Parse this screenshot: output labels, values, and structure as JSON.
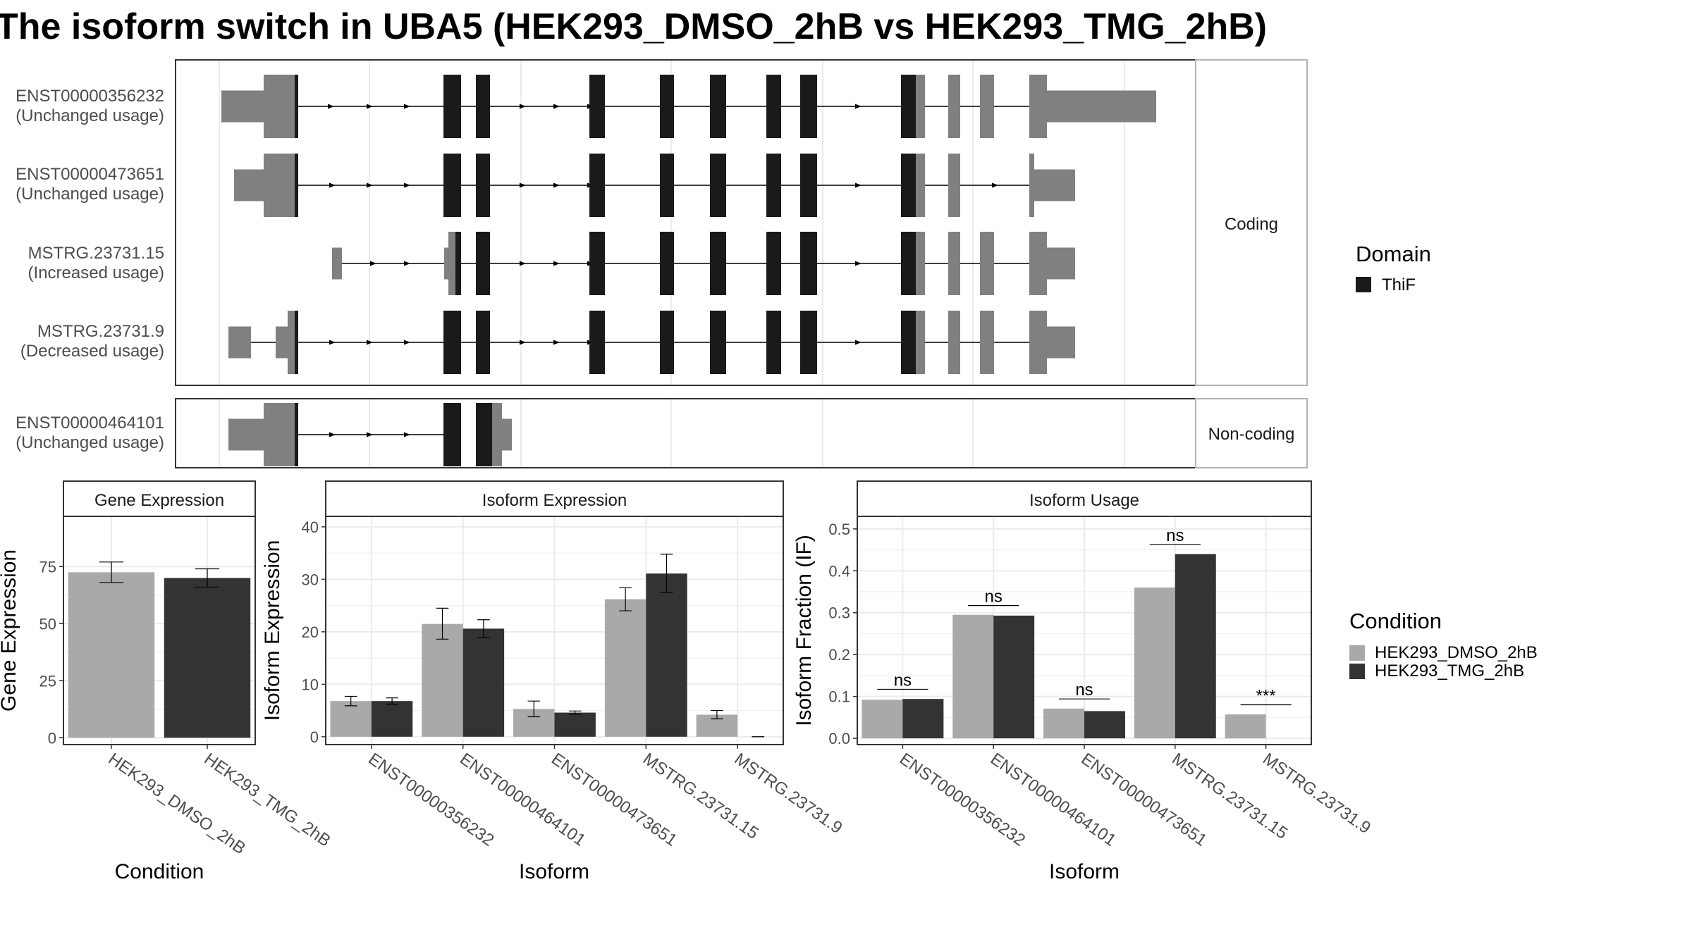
{
  "figure": {
    "title": "The isoform switch in UBA5 (HEK293_DMSO_2hB vs HEK293_TMG_2hB)"
  },
  "colors": {
    "domain_thif": "#1a1a1a",
    "exon_plain": "#808080",
    "cond_dmso": "#a9a9a9",
    "cond_tmg": "#333333",
    "grid": "#ebebeb",
    "panel_border": "#333333",
    "strip_border": "#b3b3b3"
  },
  "structure": {
    "facets": [
      {
        "label": "Coding",
        "transcripts": [
          {
            "id": "ENST00000356232",
            "usage": "(Unchanged usage)"
          },
          {
            "id": "ENST00000473651",
            "usage": "(Unchanged usage)"
          },
          {
            "id": "MSTRG.23731.15",
            "usage": "(Increased usage)"
          },
          {
            "id": "MSTRG.23731.9",
            "usage": "(Decreased usage)"
          }
        ]
      },
      {
        "label": "Non-coding",
        "transcripts": [
          {
            "id": "ENST00000464101",
            "usage": "(Unchanged usage)"
          }
        ]
      }
    ]
  },
  "legends": {
    "domain": {
      "title": "Domain",
      "items": [
        {
          "label": "ThiF",
          "color": "#1a1a1a"
        }
      ]
    },
    "condition": {
      "title": "Condition",
      "items": [
        {
          "label": "HEK293_DMSO_2hB",
          "color": "#a9a9a9"
        },
        {
          "label": "HEK293_TMG_2hB",
          "color": "#333333"
        }
      ]
    }
  },
  "chart_data": [
    {
      "type": "bar",
      "title": "Gene Expression",
      "xlabel": "Condition",
      "ylabel": "Gene Expression",
      "categories": [
        "HEK293_DMSO_2hB",
        "HEK293_TMG_2hB"
      ],
      "values": [
        72.5,
        70.0
      ],
      "errors": [
        [
          68.0,
          77.0
        ],
        [
          66.0,
          74.0
        ]
      ],
      "yticks": [
        0,
        25,
        50,
        75
      ],
      "ylim": [
        -3,
        97
      ]
    },
    {
      "type": "bar",
      "title": "Isoform Expression",
      "xlabel": "Isoform",
      "ylabel": "Isoform Expression",
      "categories": [
        "ENST00000356232",
        "ENST00000464101",
        "ENST00000473651",
        "MSTRG.23731.15",
        "MSTRG.23731.9"
      ],
      "series": [
        {
          "name": "HEK293_DMSO_2hB",
          "values": [
            6.8,
            21.5,
            5.3,
            26.2,
            4.2
          ],
          "errors": [
            [
              5.9,
              7.7
            ],
            [
              18.6,
              24.5
            ],
            [
              3.8,
              6.8
            ],
            [
              24.0,
              28.4
            ],
            [
              3.4,
              5.0
            ]
          ]
        },
        {
          "name": "HEK293_TMG_2hB",
          "values": [
            6.8,
            20.6,
            4.6,
            31.1,
            0
          ],
          "errors": [
            [
              6.2,
              7.4
            ],
            [
              18.9,
              22.3
            ],
            [
              4.3,
              4.9
            ],
            [
              27.5,
              34.8
            ],
            [
              0,
              0
            ]
          ]
        }
      ],
      "yticks": [
        0,
        10,
        20,
        30,
        40
      ],
      "ylim": [
        -1.5,
        42
      ]
    },
    {
      "type": "bar",
      "title": "Isoform Usage",
      "xlabel": "Isoform",
      "ylabel": "Isoform Fraction (IF)",
      "categories": [
        "ENST00000356232",
        "ENST00000464101",
        "ENST00000473651",
        "MSTRG.23731.15",
        "MSTRG.23731.9"
      ],
      "series": [
        {
          "name": "HEK293_DMSO_2hB",
          "values": [
            0.092,
            0.295,
            0.071,
            0.36,
            0.057
          ]
        },
        {
          "name": "HEK293_TMG_2hB",
          "values": [
            0.094,
            0.293,
            0.065,
            0.44,
            0
          ]
        }
      ],
      "significance": [
        {
          "label": "ns",
          "y": 0.117
        },
        {
          "label": "ns",
          "y": 0.317
        },
        {
          "label": "ns",
          "y": 0.094
        },
        {
          "label": "ns",
          "y": 0.463
        },
        {
          "label": "***",
          "y": 0.08
        }
      ],
      "yticks": [
        0.0,
        0.1,
        0.2,
        0.3,
        0.4,
        0.5
      ],
      "ylim": [
        -0.015,
        0.53
      ]
    }
  ]
}
